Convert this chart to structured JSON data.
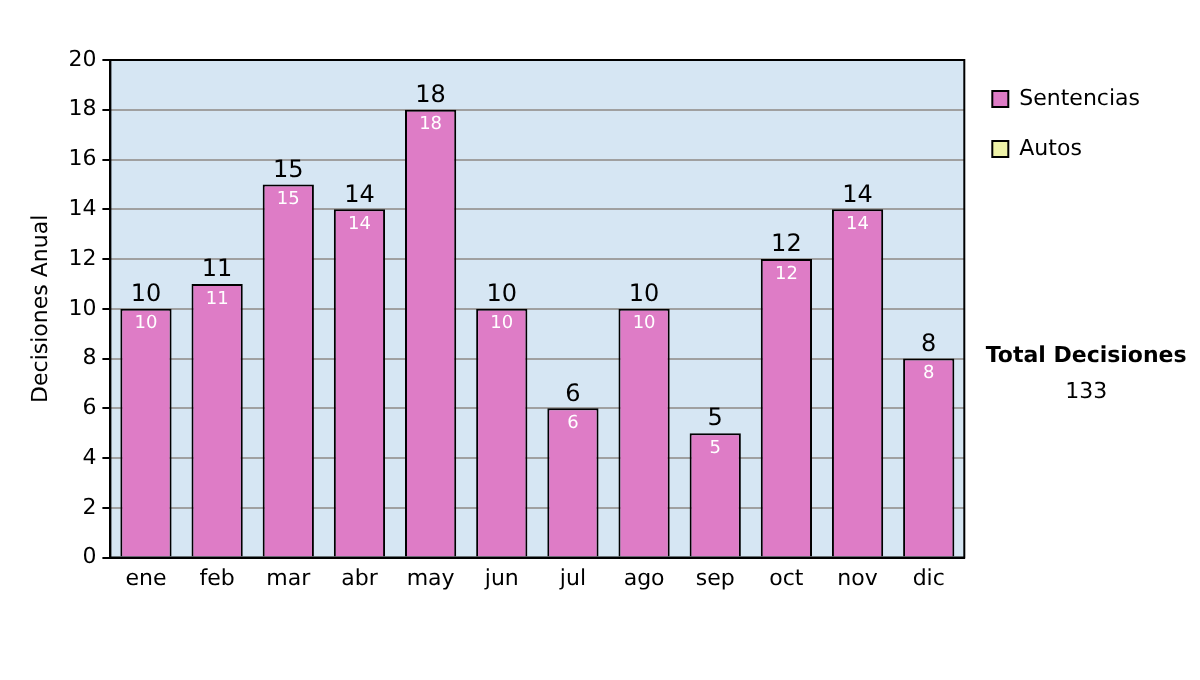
{
  "chart_data": {
    "type": "bar",
    "stacked": true,
    "ylabel": "Decisiones Anual",
    "categories": [
      "ene",
      "feb",
      "mar",
      "abr",
      "may",
      "jun",
      "jul",
      "ago",
      "sep",
      "oct",
      "nov",
      "dic"
    ],
    "series": [
      {
        "name": "Sentencias",
        "color": "#de7cc6",
        "values": [
          10,
          11,
          15,
          14,
          18,
          10,
          6,
          10,
          5,
          12,
          14,
          8
        ],
        "value_labels": [
          "10",
          "11",
          "15",
          "14",
          "18",
          "10",
          "6",
          "10",
          "5",
          "12",
          "14",
          "8"
        ]
      },
      {
        "name": "Autos",
        "color": "#eef2a8",
        "values": [
          0,
          0,
          0,
          0,
          0,
          0,
          0,
          0,
          0,
          0,
          0,
          0
        ]
      }
    ],
    "totals": [
      "10",
      "11",
      "15",
      "14",
      "18",
      "10",
      "6",
      "10",
      "5",
      "12",
      "14",
      "8"
    ],
    "ylim": [
      0,
      20
    ],
    "yticks": [
      0,
      2,
      4,
      6,
      8,
      10,
      12,
      14,
      16,
      18,
      20
    ],
    "grid": "y",
    "legend": "right",
    "annotations": [
      "Total Decisiones",
      "133"
    ]
  }
}
